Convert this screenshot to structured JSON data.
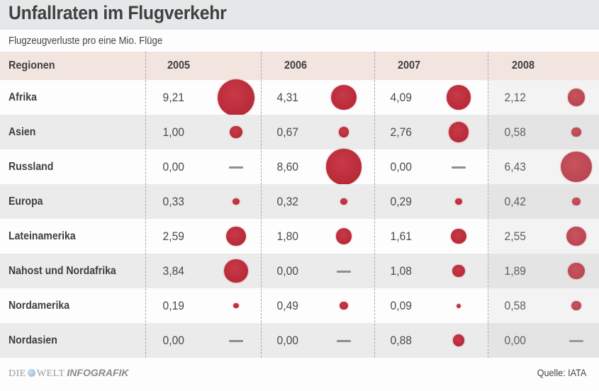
{
  "header": {
    "title": "Unfallraten im Flugverkehr",
    "subtitle": "Flugzeugverluste pro eine Mio. Flüge"
  },
  "table": {
    "region_header": "Regionen",
    "years": [
      "2005",
      "2006",
      "2007",
      "2008"
    ],
    "rows": [
      {
        "region": "Afrika",
        "labels": [
          "9,21",
          "4,31",
          "4,09",
          "2,12"
        ]
      },
      {
        "region": "Asien",
        "labels": [
          "1,00",
          "0,67",
          "2,76",
          "0,58"
        ]
      },
      {
        "region": "Russland",
        "labels": [
          "0,00",
          "8,60",
          "0,00",
          "6,43"
        ]
      },
      {
        "region": "Europa",
        "labels": [
          "0,33",
          "0,32",
          "0,29",
          "0,42"
        ]
      },
      {
        "region": "Lateinamerika",
        "labels": [
          "2,59",
          "1,80",
          "1,61",
          "2,55"
        ]
      },
      {
        "region": "Nahost und Nordafrika",
        "labels": [
          "3,84",
          "0,00",
          "1,08",
          "1,89"
        ]
      },
      {
        "region": "Nordamerika",
        "labels": [
          "0,19",
          "0,49",
          "0,09",
          "0,58"
        ]
      },
      {
        "region": "Nordasien",
        "labels": [
          "0,00",
          "0,00",
          "0,88",
          "0,00"
        ]
      }
    ]
  },
  "footer": {
    "logo_die": "DIE",
    "logo_welt": "WELT",
    "logo_infografik": "INFOGRAFIK",
    "source": "Quelle: IATA"
  },
  "colors": {
    "bubble": "#b82a38",
    "header_band": "#f2e4df",
    "title_band": "#e6e7e8",
    "shaded_row": "#ebebeb",
    "zero_dash": "#8e8e8e"
  },
  "chart_data": {
    "type": "table",
    "title": "Unfallraten im Flugverkehr",
    "subtitle": "Flugzeugverluste pro eine Mio. Flüge",
    "categories": [
      "Afrika",
      "Asien",
      "Russland",
      "Europa",
      "Lateinamerika",
      "Nahost und Nordafrika",
      "Nordamerika",
      "Nordasien"
    ],
    "x": [
      "2005",
      "2006",
      "2007",
      "2008"
    ],
    "series": [
      {
        "name": "2005",
        "values": [
          9.21,
          1.0,
          0.0,
          0.33,
          2.59,
          3.84,
          0.19,
          0.0
        ]
      },
      {
        "name": "2006",
        "values": [
          4.31,
          0.67,
          8.6,
          0.32,
          1.8,
          0.0,
          0.49,
          0.0
        ]
      },
      {
        "name": "2007",
        "values": [
          4.09,
          2.76,
          0.0,
          0.29,
          1.61,
          1.08,
          0.09,
          0.88
        ]
      },
      {
        "name": "2008",
        "values": [
          2.12,
          0.58,
          6.43,
          0.42,
          2.55,
          1.89,
          0.58,
          0.0
        ]
      }
    ],
    "encoding": "bubble area proportional to value; zero shown as dash",
    "source": "Quelle: IATA"
  }
}
